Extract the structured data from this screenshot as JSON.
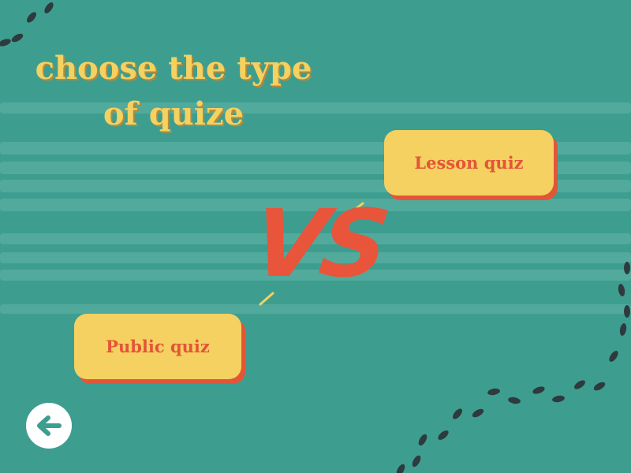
{
  "title": {
    "lines": [
      "choose the type",
      "of quize"
    ]
  },
  "vs": "VS",
  "buttons": [
    "Lesson quiz",
    "Public quiz"
  ]
}
